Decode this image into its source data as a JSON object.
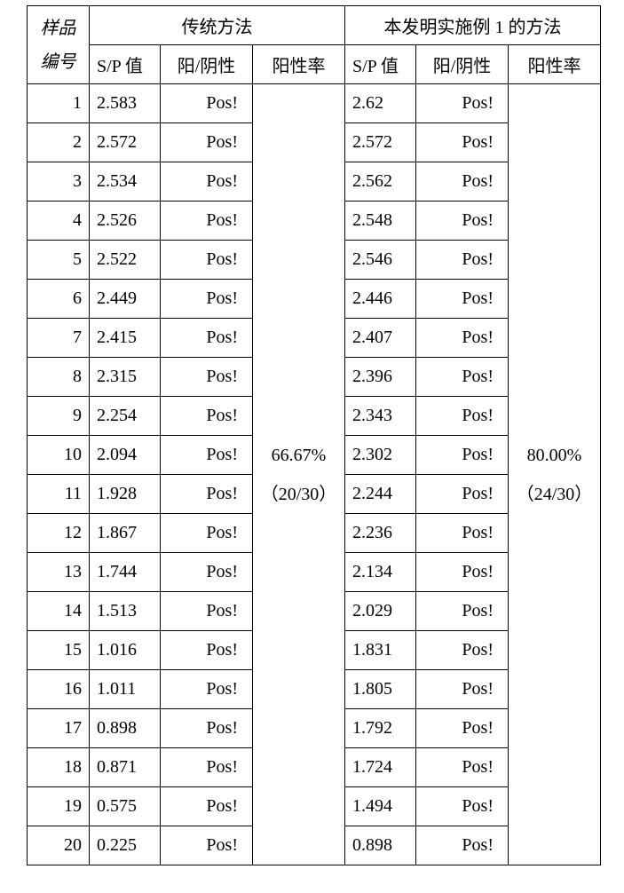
{
  "headers": {
    "sample_line1": "样品",
    "sample_line2": "编号",
    "methodA": "传统方法",
    "methodB": "本发明实施例 1 的方法",
    "sp": "S/P 值",
    "pn": "阳/阴性",
    "rate": "阳性率"
  },
  "rateA_line1": "66.67%",
  "rateA_line2": "（20/30）",
  "rateB_line1": "80.00%",
  "rateB_line2": "（24/30）",
  "rows": [
    {
      "id": "1",
      "spA": "2.583",
      "pnA": "Pos!",
      "spB": "2.62",
      "pnB": "Pos!"
    },
    {
      "id": "2",
      "spA": "2.572",
      "pnA": "Pos!",
      "spB": "2.572",
      "pnB": "Pos!"
    },
    {
      "id": "3",
      "spA": "2.534",
      "pnA": "Pos!",
      "spB": "2.562",
      "pnB": "Pos!"
    },
    {
      "id": "4",
      "spA": "2.526",
      "pnA": "Pos!",
      "spB": "2.548",
      "pnB": "Pos!"
    },
    {
      "id": "5",
      "spA": "2.522",
      "pnA": "Pos!",
      "spB": "2.546",
      "pnB": "Pos!"
    },
    {
      "id": "6",
      "spA": "2.449",
      "pnA": "Pos!",
      "spB": "2.446",
      "pnB": "Pos!"
    },
    {
      "id": "7",
      "spA": "2.415",
      "pnA": "Pos!",
      "spB": "2.407",
      "pnB": "Pos!"
    },
    {
      "id": "8",
      "spA": "2.315",
      "pnA": "Pos!",
      "spB": "2.396",
      "pnB": "Pos!"
    },
    {
      "id": "9",
      "spA": "2.254",
      "pnA": "Pos!",
      "spB": "2.343",
      "pnB": "Pos!"
    },
    {
      "id": "10",
      "spA": "2.094",
      "pnA": "Pos!",
      "spB": "2.302",
      "pnB": "Pos!"
    },
    {
      "id": "11",
      "spA": "1.928",
      "pnA": "Pos!",
      "spB": "2.244",
      "pnB": "Pos!"
    },
    {
      "id": "12",
      "spA": "1.867",
      "pnA": "Pos!",
      "spB": "2.236",
      "pnB": "Pos!"
    },
    {
      "id": "13",
      "spA": "1.744",
      "pnA": "Pos!",
      "spB": "2.134",
      "pnB": "Pos!"
    },
    {
      "id": "14",
      "spA": "1.513",
      "pnA": "Pos!",
      "spB": "2.029",
      "pnB": "Pos!"
    },
    {
      "id": "15",
      "spA": "1.016",
      "pnA": "Pos!",
      "spB": "1.831",
      "pnB": "Pos!"
    },
    {
      "id": "16",
      "spA": "1.011",
      "pnA": "Pos!",
      "spB": "1.805",
      "pnB": "Pos!"
    },
    {
      "id": "17",
      "spA": "0.898",
      "pnA": "Pos!",
      "spB": "1.792",
      "pnB": "Pos!"
    },
    {
      "id": "18",
      "spA": "0.871",
      "pnA": "Pos!",
      "spB": "1.724",
      "pnB": "Pos!"
    },
    {
      "id": "19",
      "spA": "0.575",
      "pnA": "Pos!",
      "spB": "1.494",
      "pnB": "Pos!"
    },
    {
      "id": "20",
      "spA": "0.225",
      "pnA": "Pos!",
      "spB": "0.898",
      "pnB": "Pos!"
    }
  ]
}
